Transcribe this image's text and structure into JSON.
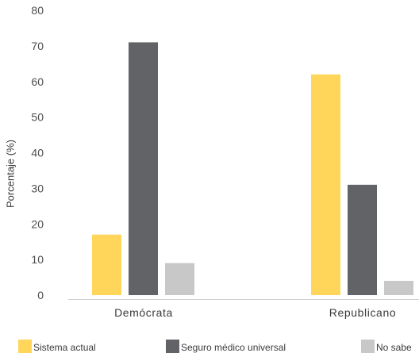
{
  "chart_data": {
    "type": "bar",
    "title": "",
    "xlabel": "",
    "ylabel": "Porcentaje (%)",
    "ylim": [
      0,
      80
    ],
    "yticks": [
      0,
      10,
      20,
      30,
      40,
      50,
      60,
      70,
      80
    ],
    "grid": false,
    "legend_position": "bottom",
    "categories": [
      "Demócrata",
      "Republicano"
    ],
    "series": [
      {
        "name": "Sistema actual",
        "color": "#ffd659",
        "values": [
          17,
          62
        ]
      },
      {
        "name": "Seguro médico universal",
        "color": "#626366",
        "values": [
          71,
          31
        ]
      },
      {
        "name": "No sabe",
        "color": "#c8c8c8",
        "values": [
          9,
          4
        ]
      }
    ]
  }
}
